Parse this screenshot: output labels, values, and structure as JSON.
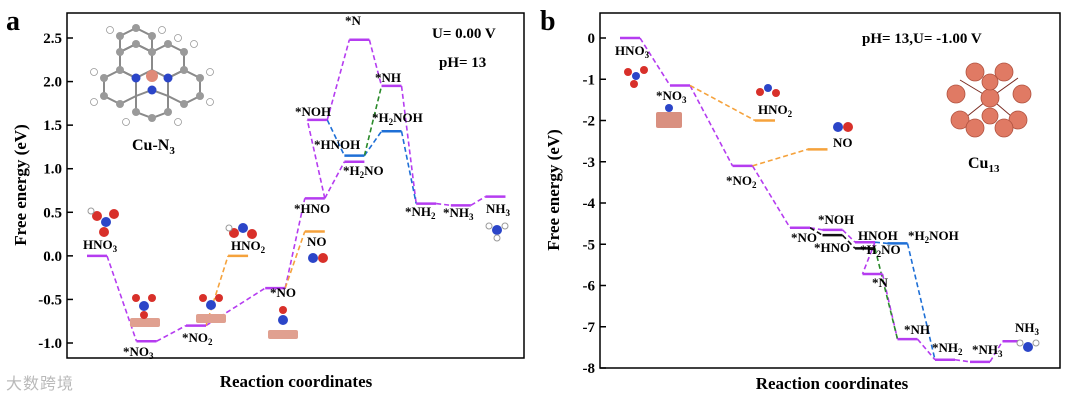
{
  "watermark": "大数跨境",
  "colors": {
    "main_path": "#b53cf0",
    "branch_orange": "#f5a23c",
    "branch_blue": "#1e6fd6",
    "branch_green": "#2a8a2a",
    "level_black": "#111111",
    "axis": "#000000"
  },
  "chart_data": [
    {
      "panel": "a",
      "type": "line",
      "title": "",
      "xlabel": "Reaction coordinates",
      "ylabel": "Free energy (eV)",
      "ylim": [
        -1.15,
        2.6
      ],
      "yticks": [
        -1.0,
        -0.5,
        0.0,
        0.5,
        1.0,
        1.5,
        2.0,
        2.5
      ],
      "ytick_labels": [
        "-1.0",
        "-0.5",
        "0.0",
        "0.5",
        "1.0",
        "1.5",
        "2.0",
        "2.5"
      ],
      "conditions": [
        "U= 0.00 V",
        "pH= 13"
      ],
      "catalyst": "Cu-N3",
      "steps": [
        {
          "name": "HNO3",
          "x": 0,
          "y": 0.0
        },
        {
          "name": "*NO3",
          "x": 1,
          "y": -0.98
        },
        {
          "name": "*NO2",
          "x": 2,
          "y": -0.8
        },
        {
          "name": "HNO2",
          "x": 2.85,
          "y": 0.0
        },
        {
          "name": "*NO",
          "x": 3.6,
          "y": -0.37
        },
        {
          "name": "*HNO",
          "x": 4.4,
          "y": 0.66
        },
        {
          "name": "NO",
          "x": 4.4,
          "y": 0.28
        },
        {
          "name": "*NOH",
          "x": 4.45,
          "y": 1.56
        },
        {
          "name": "*HNOH",
          "x": 5.2,
          "y": 1.15
        },
        {
          "name": "*H2NO",
          "x": 5.2,
          "y": 1.08
        },
        {
          "name": "*N",
          "x": 5.3,
          "y": 2.48
        },
        {
          "name": "*NH",
          "x": 5.95,
          "y": 1.95
        },
        {
          "name": "*H2NOH",
          "x": 5.95,
          "y": 1.43
        },
        {
          "name": "*NH2",
          "x": 6.65,
          "y": 0.6
        },
        {
          "name": "*NH3",
          "x": 7.35,
          "y": 0.58
        },
        {
          "name": "NH3",
          "x": 8.05,
          "y": 0.68
        }
      ],
      "paths": [
        {
          "color": "main",
          "steps": [
            "HNO3",
            "*NO3",
            "*NO2",
            "*NO",
            "*HNO",
            "*NOH",
            "*N",
            "*NH",
            "*NH2",
            "*NH3",
            "NH3"
          ]
        },
        {
          "color": "orange",
          "steps": [
            "*NO2",
            "HNO2"
          ]
        },
        {
          "color": "orange",
          "steps": [
            "*NO",
            "NO"
          ]
        },
        {
          "color": "blue",
          "steps": [
            "*NOH",
            "*HNOH",
            "*H2NOH"
          ]
        },
        {
          "color": "green",
          "steps": [
            "*HNOH",
            "*NH"
          ]
        },
        {
          "color": "blue",
          "steps": [
            "*H2NOH",
            "*NH2"
          ]
        },
        {
          "color": "main",
          "steps": [
            "*HNO",
            "*H2NO"
          ]
        }
      ]
    },
    {
      "panel": "b",
      "type": "line",
      "title": "",
      "xlabel": "Reaction coordinates",
      "ylabel": "Free energy (eV)",
      "ylim": [
        -8,
        0.25
      ],
      "yticks": [
        0,
        -1,
        -2,
        -3,
        -4,
        -5,
        -6,
        -7,
        -8
      ],
      "ytick_labels": [
        "0",
        "-1",
        "-2",
        "-3",
        "-4",
        "-5",
        "-6",
        "-7",
        "-8"
      ],
      "conditions": [
        "pH= 13,U= -1.00 V"
      ],
      "catalyst": "Cu13",
      "steps": [
        {
          "name": "HNO3",
          "x": 0,
          "y": 0.0
        },
        {
          "name": "*NO3",
          "x": 1,
          "y": -1.15
        },
        {
          "name": "HNO2",
          "x": 2.7,
          "y": -2.0
        },
        {
          "name": "*NO2",
          "x": 2.25,
          "y": -3.1
        },
        {
          "name": "NO",
          "x": 3.75,
          "y": -2.7
        },
        {
          "name": "*NO",
          "x": 3.4,
          "y": -4.6
        },
        {
          "name": "*NOH",
          "x": 4.05,
          "y": -4.65
        },
        {
          "name": "*HNO",
          "x": 4.05,
          "y": -4.78
        },
        {
          "name": "*HNOH",
          "x": 4.7,
          "y": -4.95
        },
        {
          "name": "*H2NO",
          "x": 4.7,
          "y": -5.1
        },
        {
          "name": "*H2NOH",
          "x": 5.35,
          "y": -4.98
        },
        {
          "name": "*N",
          "x": 4.85,
          "y": -5.72
        },
        {
          "name": "*NH",
          "x": 5.55,
          "y": -7.3
        },
        {
          "name": "*NH2",
          "x": 6.3,
          "y": -7.8
        },
        {
          "name": "*NH3",
          "x": 7.0,
          "y": -7.85
        },
        {
          "name": "NH3",
          "x": 7.65,
          "y": -7.35
        }
      ],
      "paths": [
        {
          "color": "main",
          "steps": [
            "HNO3",
            "*NO3",
            "*NO2",
            "*NO",
            "*NOH",
            "*HNOH",
            "*N",
            "*NH",
            "*NH2",
            "*NH3",
            "NH3"
          ]
        },
        {
          "color": "orange",
          "steps": [
            "*NO3",
            "HNO2"
          ]
        },
        {
          "color": "orange",
          "steps": [
            "*NO2",
            "NO"
          ]
        },
        {
          "color": "black",
          "steps": [
            "*NO",
            "*HNO",
            "*H2NO"
          ]
        },
        {
          "color": "blue",
          "steps": [
            "*HNOH",
            "*H2NOH",
            "*NH2"
          ]
        },
        {
          "color": "green",
          "steps": [
            "*H2NO",
            "*NH"
          ]
        }
      ]
    }
  ],
  "panel_a": {
    "letter": "a",
    "title_u": "U= 0.00 V",
    "title_ph": "pH= 13",
    "catalyst_label": "Cu-N",
    "catalyst_sub": "3",
    "xlabel": "Reaction coordinates",
    "ylabel": "Free energy (eV)",
    "labels": {
      "hno3": "HNO",
      "hno3_sub": "3",
      "no3": "*NO",
      "no3_sub": "3",
      "no2": "*NO",
      "no2_sub": "2",
      "hno2": "HNO",
      "hno2_sub": "2",
      "no": "*NO",
      "hno": "*HNO",
      "no_gas": "NO",
      "noh": "*NOH",
      "hnoh": "*HNOH",
      "h2no_a": "*H",
      "h2no_sub": "2",
      "h2no_b": "NO",
      "n": "*N",
      "nh": "*NH",
      "h2noh_a": "*H",
      "h2noh_sub": "2",
      "h2noh_b": "NOH",
      "nh2": "*NH",
      "nh2_sub": "2",
      "nh3": "*NH",
      "nh3_sub": "3",
      "nh3g": "NH",
      "nh3g_sub": "3"
    }
  },
  "panel_b": {
    "letter": "b",
    "title": "pH= 13,U= -1.00 V",
    "catalyst_label": "Cu",
    "catalyst_sub": "13",
    "xlabel": "Reaction coordinates",
    "ylabel": "Free energy (eV)",
    "labels": {
      "hno3": "HNO",
      "hno3_sub": "3",
      "no3": "*NO",
      "no3_sub": "3",
      "hno2": "HNO",
      "hno2_sub": "2",
      "no2": "*NO",
      "no2_sub": "2",
      "no_gas": "NO",
      "no": "*NO",
      "noh": "*NOH",
      "hno": "*HNO",
      "hnoh": "HNOH",
      "h2no_a": "*H",
      "h2no_sub": "2",
      "h2no_b": "NO",
      "h2noh_a": "*H",
      "h2noh_sub": "2",
      "h2noh_b": "NOH",
      "n": "*N",
      "nh": "*NH",
      "nh2": "*NH",
      "nh2_sub": "2",
      "nh3": "*NH",
      "nh3_sub": "3",
      "nh3g": "NH",
      "nh3g_sub": "3"
    }
  }
}
